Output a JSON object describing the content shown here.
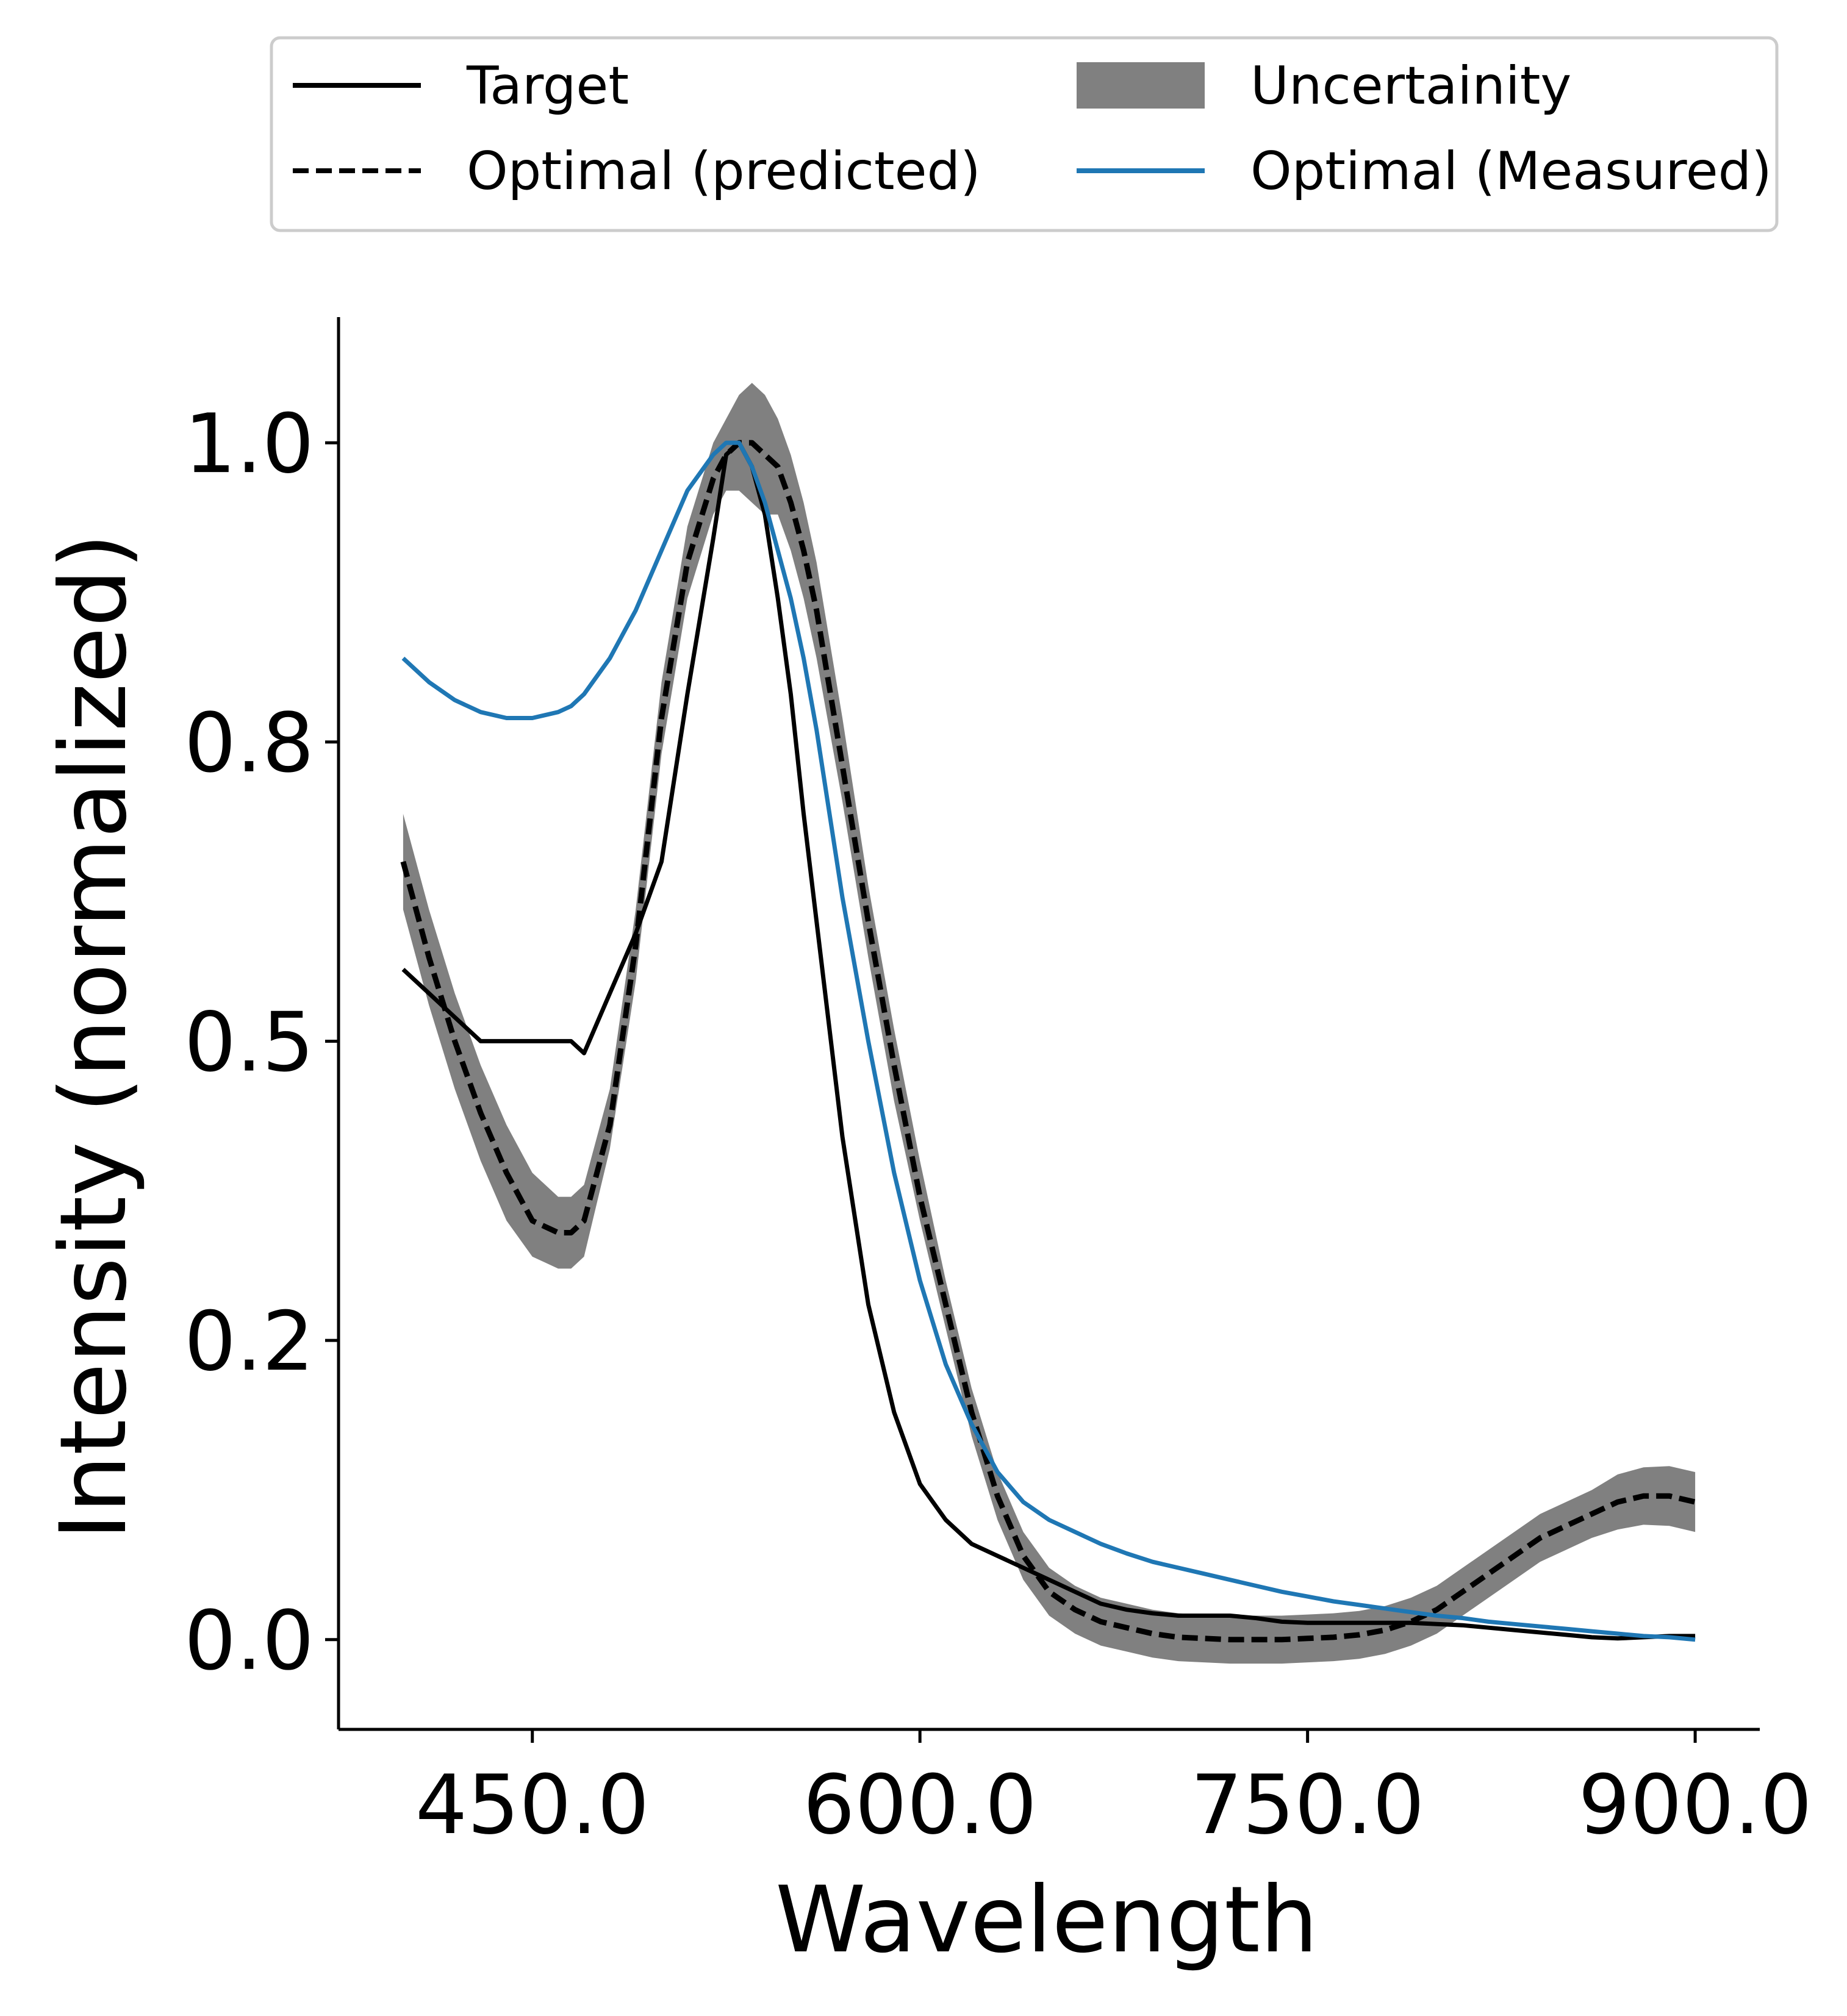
{
  "chart_data": {
    "type": "line",
    "xlabel": "Wavelength",
    "ylabel": "Intensity (normalized)",
    "xlim": [
      375,
      925
    ],
    "ylim": [
      -0.075,
      1.105
    ],
    "x_ticks": [
      450,
      600,
      750,
      900
    ],
    "x_tick_labels": [
      "450.0",
      "600.0",
      "750.0",
      "900.0"
    ],
    "y_ticks": [
      0.0,
      0.25,
      0.5,
      0.75,
      1.0
    ],
    "y_tick_labels": [
      "0.0",
      "0.2",
      "0.5",
      "0.8",
      "1.0"
    ],
    "grid": false,
    "legend": {
      "placement": "top",
      "columns": 2,
      "entries": [
        {
          "label": "Target",
          "style": "solid",
          "color": "#000000"
        },
        {
          "label": "Uncertainity",
          "style": "band",
          "color": "#808080"
        },
        {
          "label": "Optimal (predicted)",
          "style": "dashed",
          "color": "#000000"
        },
        {
          "label": "Optimal (Measured)",
          "style": "solid",
          "color": "#1f77b4"
        }
      ]
    },
    "x": [
      400,
      410,
      420,
      430,
      440,
      450,
      460,
      465,
      470,
      480,
      490,
      500,
      510,
      520,
      525,
      530,
      535,
      540,
      545,
      550,
      555,
      560,
      570,
      580,
      590,
      600,
      610,
      620,
      630,
      640,
      650,
      660,
      670,
      680,
      690,
      700,
      710,
      720,
      730,
      740,
      750,
      760,
      770,
      780,
      790,
      800,
      810,
      820,
      830,
      840,
      850,
      860,
      870,
      880,
      890,
      900
    ],
    "series": [
      {
        "name": "Target",
        "color": "#000000",
        "style": "solid",
        "values": [
          0.56,
          0.54,
          0.52,
          0.5,
          0.5,
          0.5,
          0.5,
          0.5,
          0.49,
          0.54,
          0.59,
          0.65,
          0.79,
          0.92,
          0.99,
          1.0,
          0.98,
          0.94,
          0.87,
          0.79,
          0.69,
          0.6,
          0.42,
          0.28,
          0.19,
          0.13,
          0.1,
          0.08,
          0.07,
          0.06,
          0.05,
          0.04,
          0.03,
          0.025,
          0.022,
          0.02,
          0.02,
          0.02,
          0.018,
          0.015,
          0.014,
          0.014,
          0.014,
          0.014,
          0.014,
          0.013,
          0.012,
          0.01,
          0.008,
          0.006,
          0.004,
          0.002,
          0.001,
          0.002,
          0.003,
          0.003
        ]
      },
      {
        "name": "Optimal (predicted)",
        "color": "#000000",
        "style": "dashed",
        "values": [
          0.65,
          0.57,
          0.5,
          0.44,
          0.39,
          0.35,
          0.34,
          0.34,
          0.35,
          0.43,
          0.58,
          0.77,
          0.9,
          0.97,
          0.99,
          1.0,
          1.0,
          0.99,
          0.98,
          0.95,
          0.91,
          0.86,
          0.73,
          0.6,
          0.48,
          0.37,
          0.28,
          0.19,
          0.12,
          0.07,
          0.04,
          0.025,
          0.015,
          0.01,
          0.005,
          0.002,
          0.001,
          0.0,
          0.0,
          0.0,
          0.001,
          0.002,
          0.004,
          0.008,
          0.015,
          0.025,
          0.04,
          0.055,
          0.07,
          0.085,
          0.095,
          0.105,
          0.115,
          0.12,
          0.12,
          0.115
        ]
      },
      {
        "name": "Optimal (Measured)",
        "color": "#1f77b4",
        "style": "solid",
        "values": [
          0.82,
          0.8,
          0.785,
          0.775,
          0.77,
          0.77,
          0.775,
          0.78,
          0.79,
          0.82,
          0.86,
          0.91,
          0.96,
          0.99,
          1.0,
          1.0,
          0.98,
          0.95,
          0.91,
          0.87,
          0.82,
          0.76,
          0.62,
          0.5,
          0.39,
          0.3,
          0.23,
          0.18,
          0.14,
          0.115,
          0.1,
          0.09,
          0.08,
          0.072,
          0.065,
          0.06,
          0.055,
          0.05,
          0.045,
          0.04,
          0.036,
          0.032,
          0.029,
          0.026,
          0.023,
          0.02,
          0.018,
          0.015,
          0.013,
          0.011,
          0.009,
          0.007,
          0.005,
          0.003,
          0.002,
          0.0
        ]
      }
    ],
    "uncertainty_band": {
      "name": "Uncertainity",
      "color": "#808080",
      "lower": [
        0.61,
        0.53,
        0.46,
        0.4,
        0.35,
        0.32,
        0.31,
        0.31,
        0.32,
        0.41,
        0.55,
        0.74,
        0.87,
        0.94,
        0.96,
        0.96,
        0.95,
        0.94,
        0.94,
        0.91,
        0.87,
        0.82,
        0.7,
        0.57,
        0.45,
        0.35,
        0.26,
        0.17,
        0.1,
        0.05,
        0.02,
        0.005,
        -0.005,
        -0.01,
        -0.015,
        -0.018,
        -0.019,
        -0.02,
        -0.02,
        -0.02,
        -0.019,
        -0.018,
        -0.016,
        -0.012,
        -0.005,
        0.005,
        0.02,
        0.035,
        0.05,
        0.065,
        0.075,
        0.085,
        0.092,
        0.096,
        0.095,
        0.09
      ],
      "upper": [
        0.69,
        0.61,
        0.54,
        0.48,
        0.43,
        0.39,
        0.37,
        0.37,
        0.38,
        0.46,
        0.61,
        0.8,
        0.93,
        1.0,
        1.02,
        1.04,
        1.05,
        1.04,
        1.02,
        0.99,
        0.95,
        0.9,
        0.77,
        0.63,
        0.51,
        0.4,
        0.3,
        0.21,
        0.14,
        0.09,
        0.06,
        0.045,
        0.035,
        0.03,
        0.025,
        0.022,
        0.021,
        0.02,
        0.02,
        0.02,
        0.021,
        0.022,
        0.024,
        0.028,
        0.035,
        0.045,
        0.06,
        0.075,
        0.09,
        0.105,
        0.115,
        0.125,
        0.138,
        0.144,
        0.145,
        0.14
      ]
    }
  }
}
